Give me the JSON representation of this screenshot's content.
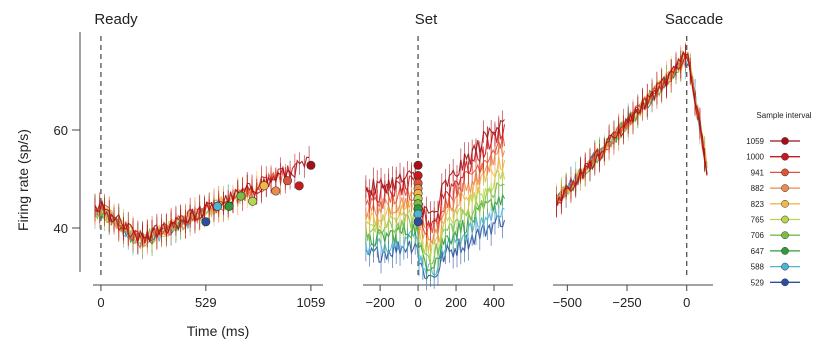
{
  "chart_data": {
    "type": "line",
    "ylabel": "Firing rate (sp/s)",
    "xlabel": "Time (ms)",
    "y_ticks": [
      40,
      60
    ],
    "ylim": [
      32,
      76
    ],
    "colors": {
      "1059": "#a50f15",
      "1000": "#cb181d",
      "941": "#e0533a",
      "882": "#ee8a4a",
      "823": "#f0b84a",
      "765": "#b8d64c",
      "706": "#79bc47",
      "647": "#2f9b3a",
      "588": "#4fb3d3",
      "529": "#2b4f9e"
    },
    "legend": {
      "title": "Sample interval",
      "items": [
        "1059",
        "1000",
        "941",
        "882",
        "823",
        "765",
        "706",
        "647",
        "588",
        "529"
      ]
    },
    "panels": [
      {
        "title": "Ready",
        "xlim": [
          -40,
          1120
        ],
        "x_ticks": [
          0,
          529,
          1059
        ],
        "x_tick_labels": [
          "0",
          "529",
          "1059"
        ],
        "event_line_x": 0,
        "endpoints": [
          {
            "interval": "529",
            "x": 529,
            "y": 41
          },
          {
            "interval": "588",
            "x": 588,
            "y": 44
          },
          {
            "interval": "647",
            "x": 647,
            "y": 44
          },
          {
            "interval": "706",
            "x": 706,
            "y": 46
          },
          {
            "interval": "765",
            "x": 765,
            "y": 45
          },
          {
            "interval": "823",
            "x": 823,
            "y": 48
          },
          {
            "interval": "882",
            "x": 882,
            "y": 47
          },
          {
            "interval": "941",
            "x": 941,
            "y": 49
          },
          {
            "interval": "1000",
            "x": 1000,
            "y": 48
          },
          {
            "interval": "1059",
            "x": 1059,
            "y": 52
          }
        ]
      },
      {
        "title": "Set",
        "xlim": [
          -290,
          500
        ],
        "x_ticks": [
          -200,
          0,
          200,
          400
        ],
        "x_tick_labels": [
          "−200",
          "0",
          "200",
          "400"
        ],
        "event_line_x": 0,
        "endpoints": [
          {
            "interval": "1059",
            "x": 0,
            "y": 52
          },
          {
            "interval": "1000",
            "x": 0,
            "y": 50
          },
          {
            "interval": "941",
            "x": 0,
            "y": 48.5
          },
          {
            "interval": "882",
            "x": 0,
            "y": 47.5
          },
          {
            "interval": "823",
            "x": 0,
            "y": 46.5
          },
          {
            "interval": "765",
            "x": 0,
            "y": 45.5
          },
          {
            "interval": "706",
            "x": 0,
            "y": 44.5
          },
          {
            "interval": "647",
            "x": 0,
            "y": 43.5
          },
          {
            "interval": "588",
            "x": 0,
            "y": 42.5
          },
          {
            "interval": "529",
            "x": 0,
            "y": 41
          }
        ]
      },
      {
        "title": "Saccade",
        "xlim": [
          -560,
          110
        ],
        "x_ticks": [
          -500,
          -250,
          0
        ],
        "x_tick_labels": [
          "−500",
          "−250",
          "0"
        ],
        "event_line_x": 0,
        "endpoints": []
      }
    ]
  }
}
